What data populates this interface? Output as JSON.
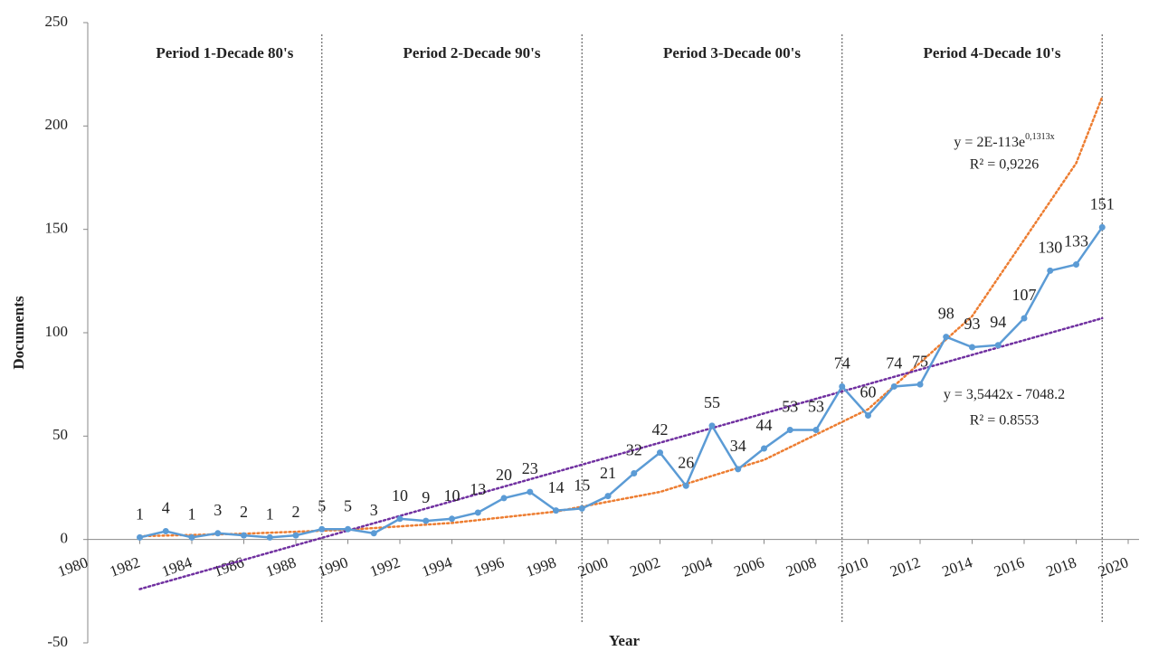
{
  "chart_data": {
    "type": "line",
    "xlabel": "Year",
    "ylabel": "Documents",
    "x": [
      1982,
      1983,
      1984,
      1985,
      1986,
      1987,
      1988,
      1989,
      1990,
      1991,
      1992,
      1993,
      1994,
      1995,
      1996,
      1997,
      1998,
      1999,
      2000,
      2001,
      2002,
      2003,
      2004,
      2005,
      2006,
      2007,
      2008,
      2009,
      2010,
      2011,
      2012,
      2013,
      2014,
      2015,
      2016,
      2017,
      2018,
      2019
    ],
    "values": [
      1,
      4,
      1,
      3,
      2,
      1,
      2,
      5,
      5,
      3,
      10,
      9,
      10,
      13,
      20,
      23,
      14,
      15,
      21,
      32,
      42,
      26,
      55,
      34,
      44,
      53,
      53,
      74,
      60,
      74,
      75,
      98,
      93,
      94,
      107,
      130,
      133,
      151
    ],
    "color": "#5b9bd5",
    "xlim": [
      1980,
      2020
    ],
    "xticks": [
      1980,
      1982,
      1984,
      1986,
      1988,
      1990,
      1992,
      1994,
      1996,
      1998,
      2000,
      2002,
      2004,
      2006,
      2008,
      2010,
      2012,
      2014,
      2016,
      2018,
      2020
    ],
    "ylim": [
      -50,
      250
    ],
    "yticks": [
      -50,
      0,
      50,
      100,
      150,
      200,
      250
    ],
    "yticks_label_first": "-50",
    "periods": [
      {
        "label": "Period 1-Decade 80's",
        "x": 1989
      },
      {
        "label": "Period 2-Decade 90's",
        "x": 1999
      },
      {
        "label": "Period 3-Decade 00's",
        "x": 2009
      },
      {
        "label": "Period 4-Decade 10's",
        "x": 2019
      }
    ],
    "trendlines": [
      {
        "kind": "exponential",
        "color": "#ed7d31",
        "x": [
          1982,
          1986,
          1990,
          1994,
          1998,
          2002,
          2006,
          2010,
          2014,
          2018,
          2019
        ],
        "values": [
          1.6,
          2.8,
          4.7,
          8,
          13.5,
          23,
          38.5,
          63,
          108,
          182,
          214
        ],
        "equation": "y = 2E-113e",
        "equation_sup": "0,1313x",
        "r2": "R² = 0,9226"
      },
      {
        "kind": "linear",
        "color": "#7030a0",
        "x": [
          1982,
          2019
        ],
        "values": [
          -24,
          107
        ],
        "equation": "y = 3,5442x - 7048.2",
        "r2": "R² = 0.8553"
      }
    ]
  }
}
